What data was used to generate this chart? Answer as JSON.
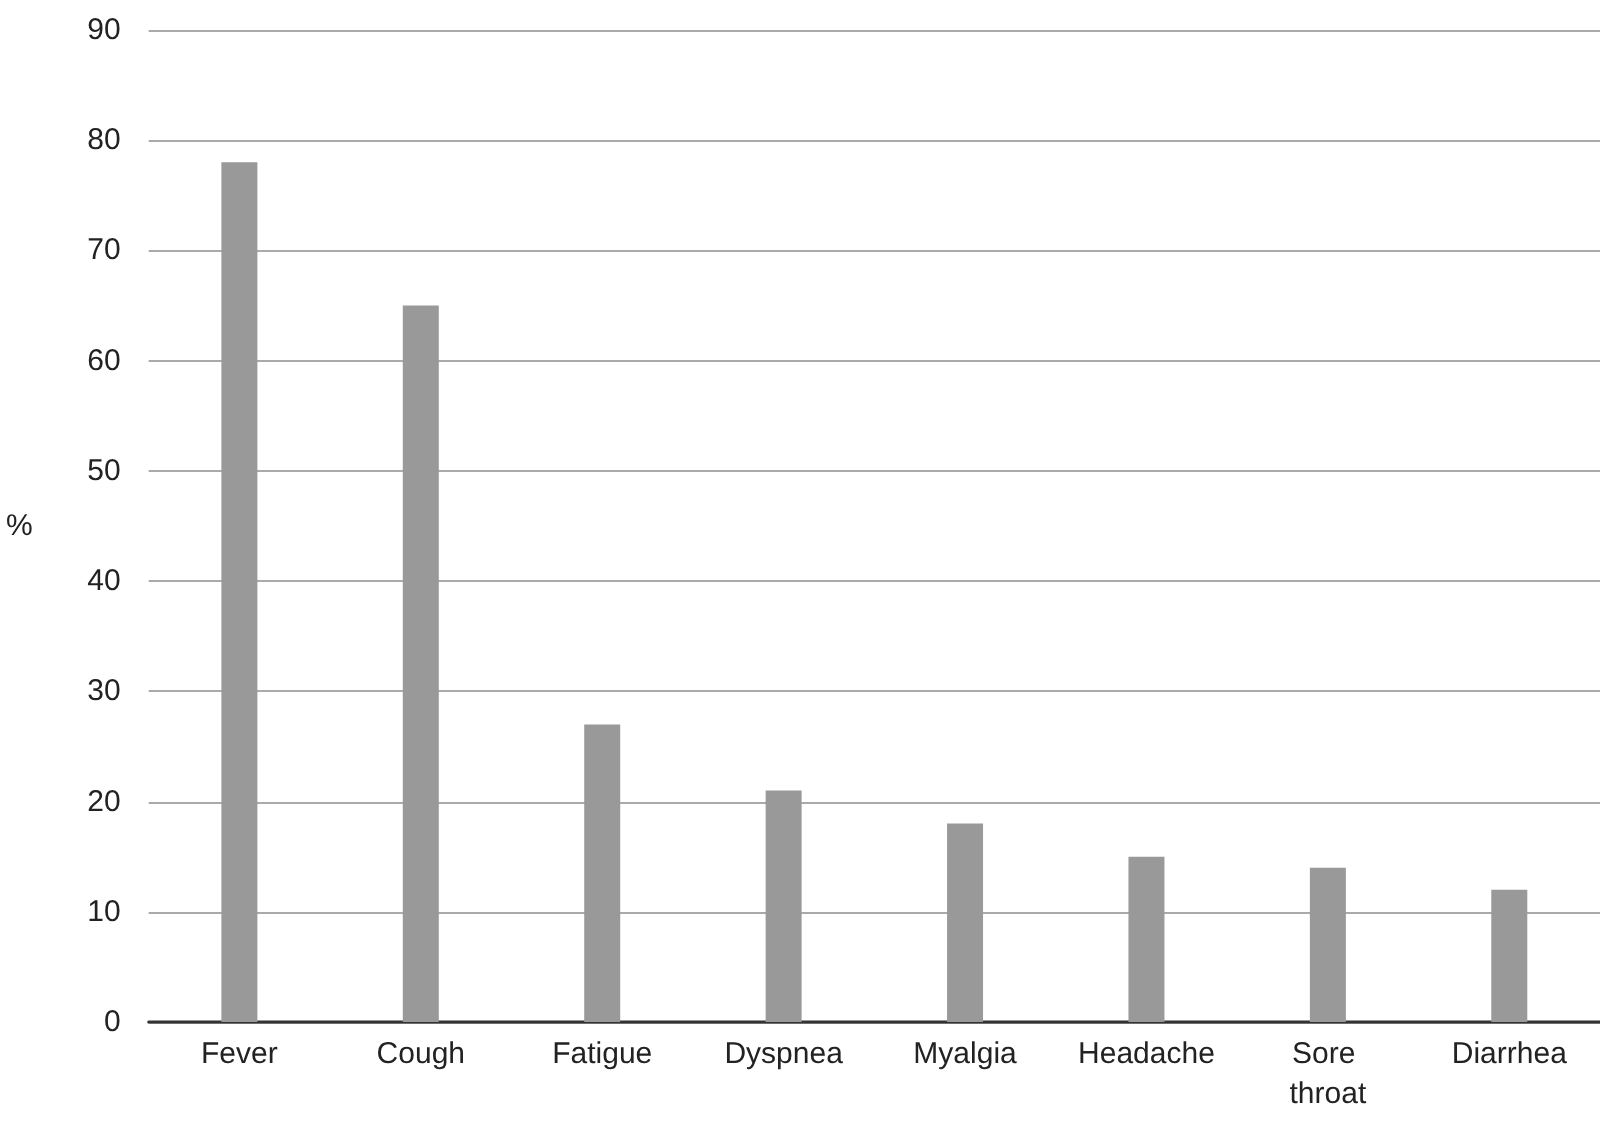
{
  "chart_data": {
    "type": "bar",
    "ylabel": "%",
    "categories": [
      "Fever",
      "Cough",
      "Fatigue",
      "Dyspnea",
      "Myalgia",
      "Headache",
      "Sore throat",
      "Diarrhea"
    ],
    "values": [
      78,
      65,
      27,
      21,
      18,
      15,
      14,
      12
    ],
    "color": "#999999",
    "ylim": [
      0,
      90
    ],
    "yticks": [
      0,
      10,
      20,
      30,
      40,
      50,
      60,
      70,
      80,
      90
    ],
    "grid": "y"
  }
}
